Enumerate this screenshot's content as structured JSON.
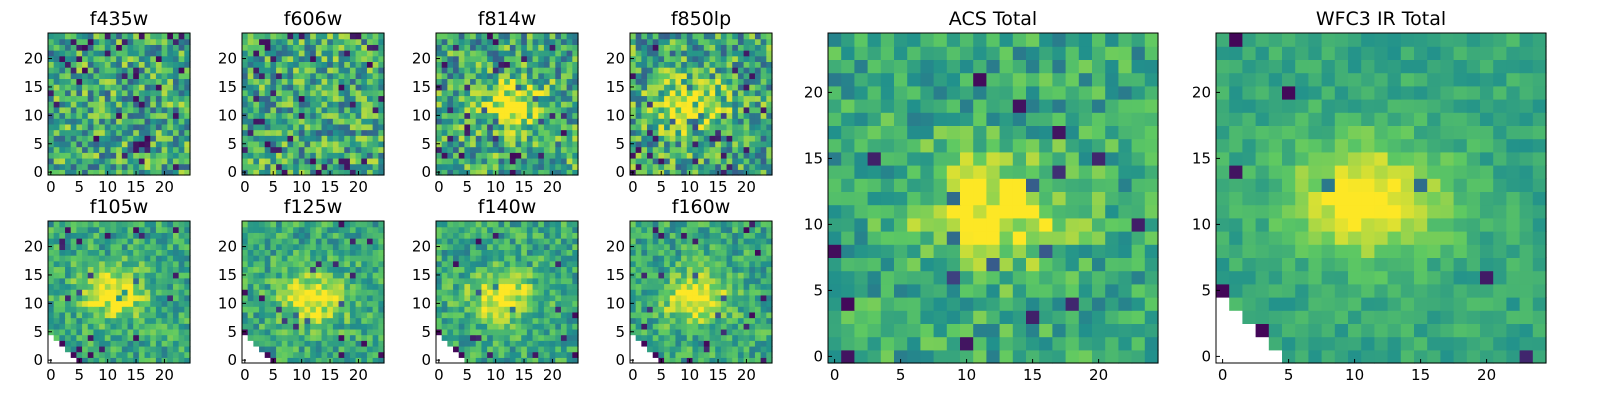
{
  "colormap": [
    "#440154",
    "#3b528b",
    "#21918c",
    "#5ec962",
    "#fde725"
  ],
  "chart_data": [
    {
      "type": "heatmap",
      "title": "f435w",
      "xlim": [
        0,
        24
      ],
      "ylim": [
        0,
        24
      ],
      "xticks": [
        0,
        5,
        10,
        15,
        20
      ],
      "yticks": [
        0,
        5,
        10,
        15,
        20
      ],
      "peak": null,
      "mask": "none",
      "noise": "high"
    },
    {
      "type": "heatmap",
      "title": "f606w",
      "xlim": [
        0,
        24
      ],
      "ylim": [
        0,
        24
      ],
      "xticks": [
        0,
        5,
        10,
        15,
        20
      ],
      "yticks": [
        0,
        5,
        10,
        15,
        20
      ],
      "peak": null,
      "mask": "none",
      "noise": "high"
    },
    {
      "type": "heatmap",
      "title": "f814w",
      "xlim": [
        0,
        24
      ],
      "ylim": [
        0,
        24
      ],
      "xticks": [
        0,
        5,
        10,
        15,
        20
      ],
      "yticks": [
        0,
        5,
        10,
        15,
        20
      ],
      "peak": [
        13,
        12
      ],
      "mask": "none",
      "noise": "high"
    },
    {
      "type": "heatmap",
      "title": "f850lp",
      "xlim": [
        0,
        24
      ],
      "ylim": [
        0,
        24
      ],
      "xticks": [
        0,
        5,
        10,
        15,
        20
      ],
      "yticks": [
        0,
        5,
        10,
        15,
        20
      ],
      "peak": [
        10,
        12
      ],
      "mask": "none",
      "noise": "high"
    },
    {
      "type": "heatmap",
      "title": "ACS Total",
      "xlim": [
        0,
        24
      ],
      "ylim": [
        0,
        24
      ],
      "xticks": [
        0,
        5,
        10,
        15,
        20
      ],
      "yticks": [
        0,
        5,
        10,
        15,
        20
      ],
      "peak": [
        12,
        11
      ],
      "mask": "none",
      "noise": "medium"
    },
    {
      "type": "heatmap",
      "title": "f105w",
      "xlim": [
        0,
        24
      ],
      "ylim": [
        0,
        24
      ],
      "xticks": [
        0,
        5,
        10,
        15,
        20
      ],
      "yticks": [
        0,
        5,
        10,
        15,
        20
      ],
      "peak": [
        11,
        12
      ],
      "mask": "corner",
      "noise": "medium"
    },
    {
      "type": "heatmap",
      "title": "f125w",
      "xlim": [
        0,
        24
      ],
      "ylim": [
        0,
        24
      ],
      "xticks": [
        0,
        5,
        10,
        15,
        20
      ],
      "yticks": [
        0,
        5,
        10,
        15,
        20
      ],
      "peak": [
        12,
        11
      ],
      "mask": "corner",
      "noise": "medium"
    },
    {
      "type": "heatmap",
      "title": "f140w",
      "xlim": [
        0,
        24
      ],
      "ylim": [
        0,
        24
      ],
      "xticks": [
        0,
        5,
        10,
        15,
        20
      ],
      "yticks": [
        0,
        5,
        10,
        15,
        20
      ],
      "peak": [
        11,
        11
      ],
      "mask": "corner",
      "noise": "medium"
    },
    {
      "type": "heatmap",
      "title": "f160w",
      "xlim": [
        0,
        24
      ],
      "ylim": [
        0,
        24
      ],
      "xticks": [
        0,
        5,
        10,
        15,
        20
      ],
      "yticks": [
        0,
        5,
        10,
        15,
        20
      ],
      "peak": [
        11,
        11
      ],
      "mask": "corner",
      "noise": "medium"
    },
    {
      "type": "heatmap",
      "title": "WFC3 IR Total",
      "xlim": [
        0,
        24
      ],
      "ylim": [
        0,
        24
      ],
      "xticks": [
        0,
        5,
        10,
        15,
        20
      ],
      "yticks": [
        0,
        5,
        10,
        15,
        20
      ],
      "peak": [
        11,
        12
      ],
      "mask": "corner",
      "noise": "low"
    }
  ]
}
